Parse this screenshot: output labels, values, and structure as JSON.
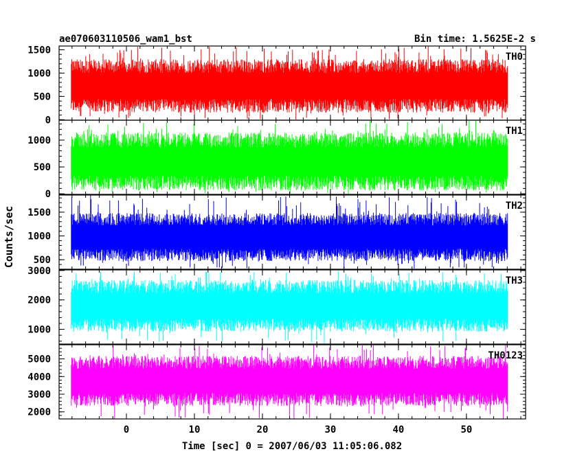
{
  "chart_data": {
    "type": "line",
    "title": "ae070603110506_wam1_bst",
    "subtitle": "Bin time: 1.5625E-2 s",
    "xlabel": "Time [sec] 0 = 2007/06/03 11:05:06.082",
    "ylabel": "Counts/sec",
    "xlim": [
      -9.9,
      58.7
    ],
    "x_ticks": [
      0,
      10,
      20,
      30,
      40,
      50
    ],
    "x_range_data": [
      -8.1,
      56.1
    ],
    "bin_time": 0.015625,
    "grid": false,
    "panels": [
      {
        "name": "TH0",
        "color": "#ff0000",
        "ylim": [
          -10,
          1580
        ],
        "y_ticks": [
          0,
          500,
          1000,
          1500
        ],
        "typical_min": 300,
        "typical_max": 1150,
        "spike_max": 1580,
        "floor_min": 0
      },
      {
        "name": "TH1",
        "color": "#00ff00",
        "ylim": [
          -10,
          1370
        ],
        "y_ticks": [
          0,
          500,
          1000
        ],
        "typical_min": 200,
        "typical_max": 1000,
        "spike_max": 1370,
        "floor_min": 0
      },
      {
        "name": "TH2",
        "color": "#0000ff",
        "ylim": [
          300,
          1860
        ],
        "y_ticks": [
          500,
          1000,
          1500
        ],
        "typical_min": 600,
        "typical_max": 1350,
        "spike_max": 1860,
        "floor_min": 300
      },
      {
        "name": "TH3",
        "color": "#00ffff",
        "ylim": [
          500,
          3020
        ],
        "y_ticks": [
          1000,
          2000,
          3000
        ],
        "typical_min": 1150,
        "typical_max": 2450,
        "spike_max": 3020,
        "floor_min": 500
      },
      {
        "name": "TH0123",
        "color": "#ff00ff",
        "ylim": [
          1600,
          5800
        ],
        "y_ticks": [
          2000,
          3000,
          4000,
          5000
        ],
        "typical_min": 2700,
        "typical_max": 4800,
        "spike_max": 5800,
        "floor_min": 1600
      }
    ]
  }
}
